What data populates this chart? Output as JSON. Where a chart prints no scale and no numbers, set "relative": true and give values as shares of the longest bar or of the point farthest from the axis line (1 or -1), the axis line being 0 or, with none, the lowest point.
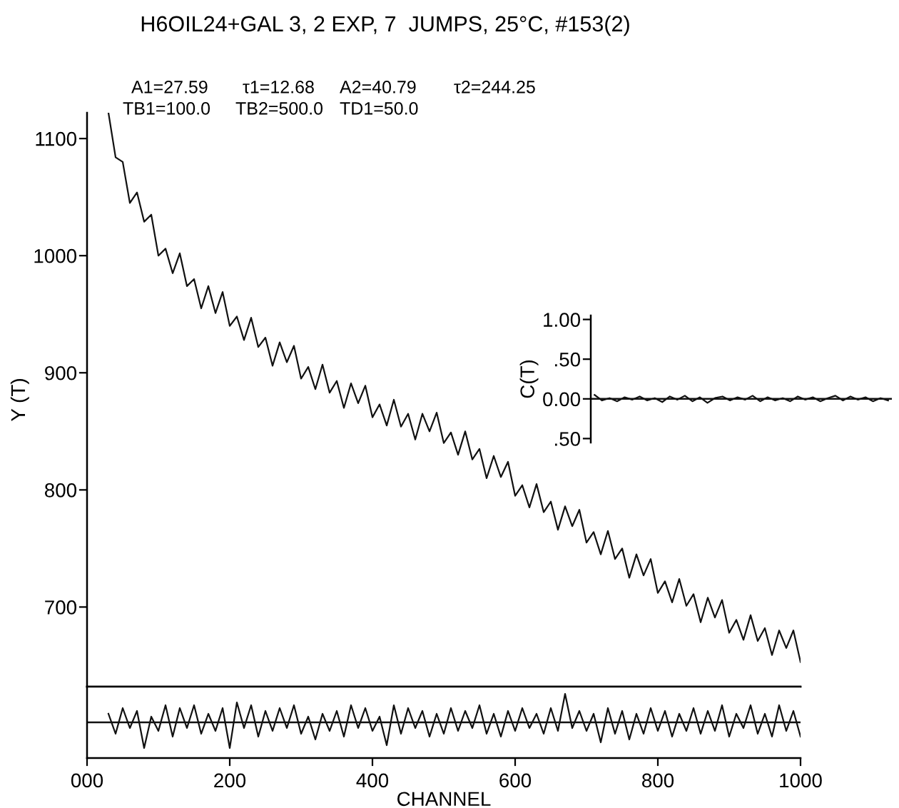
{
  "chart_data": [
    {
      "type": "line",
      "title": "H6OIL24+GAL 3, 2 EXP, 7  JUMPS, 25°C, #153(2)",
      "ylabel": "Y (T)",
      "annotations": [
        "A1=27.59",
        "τ1=12.68",
        "A2=40.79",
        "τ2=244.25",
        "TB1=100.0",
        "TB2=500.0",
        "TD1=50.0"
      ],
      "x": [
        30,
        40,
        50,
        60,
        70,
        80,
        90,
        100,
        110,
        120,
        130,
        140,
        150,
        160,
        170,
        180,
        190,
        200,
        210,
        220,
        230,
        240,
        250,
        260,
        270,
        280,
        290,
        300,
        310,
        320,
        330,
        340,
        350,
        360,
        370,
        380,
        390,
        400,
        410,
        420,
        430,
        440,
        450,
        460,
        470,
        480,
        490,
        500,
        510,
        520,
        530,
        540,
        550,
        560,
        570,
        580,
        590,
        600,
        610,
        620,
        630,
        640,
        650,
        660,
        670,
        680,
        690,
        700,
        710,
        720,
        730,
        740,
        750,
        760,
        770,
        780,
        790,
        800,
        810,
        820,
        830,
        840,
        850,
        860,
        870,
        880,
        890,
        900,
        910,
        920,
        930,
        940,
        950,
        960,
        970,
        980,
        990,
        1000
      ],
      "series": [
        {
          "color": "#111111",
          "values": [
            1122,
            1084,
            1080,
            1045,
            1054,
            1029,
            1035,
            1000,
            1006,
            985,
            1002,
            974,
            980,
            955,
            974,
            951,
            969,
            940,
            948,
            928,
            947,
            922,
            930,
            906,
            926,
            909,
            923,
            895,
            905,
            886,
            907,
            883,
            893,
            870,
            891,
            874,
            889,
            862,
            873,
            855,
            877,
            854,
            865,
            843,
            865,
            850,
            866,
            840,
            849,
            830,
            850,
            826,
            835,
            810,
            829,
            811,
            824,
            795,
            804,
            785,
            805,
            781,
            790,
            766,
            786,
            769,
            783,
            755,
            764,
            745,
            765,
            741,
            750,
            725,
            745,
            727,
            741,
            712,
            722,
            704,
            724,
            701,
            711,
            687,
            708,
            691,
            706,
            678,
            689,
            672,
            693,
            671,
            682,
            659,
            680,
            665,
            680,
            653
          ]
        }
      ],
      "xlim": [
        0,
        1000
      ],
      "ylim": [
        632,
        1122
      ],
      "yticks": [
        700,
        800,
        900,
        1000,
        1100
      ],
      "tick_labels": "y",
      "grid": false,
      "legend": false,
      "marker": "none",
      "line_style": "solid"
    },
    {
      "type": "line",
      "xlabel": "CHANNEL",
      "relative": true,
      "x": [
        30,
        40,
        50,
        60,
        70,
        80,
        90,
        100,
        110,
        120,
        130,
        140,
        150,
        160,
        170,
        180,
        190,
        200,
        210,
        220,
        230,
        240,
        250,
        260,
        270,
        280,
        290,
        300,
        310,
        320,
        330,
        340,
        350,
        360,
        370,
        380,
        390,
        400,
        410,
        420,
        430,
        440,
        450,
        460,
        470,
        480,
        490,
        500,
        510,
        520,
        530,
        540,
        550,
        560,
        570,
        580,
        590,
        600,
        610,
        620,
        630,
        640,
        650,
        660,
        670,
        680,
        690,
        700,
        710,
        720,
        730,
        740,
        750,
        760,
        770,
        780,
        790,
        800,
        810,
        820,
        830,
        840,
        850,
        860,
        870,
        880,
        890,
        900,
        910,
        920,
        930,
        940,
        950,
        960,
        970,
        980,
        990,
        1000
      ],
      "series": [
        {
          "color": "#111111",
          "values": [
            0.3,
            -0.4,
            0.5,
            -0.2,
            0.4,
            -0.9,
            0.2,
            -0.3,
            0.6,
            -0.5,
            0.5,
            -0.2,
            0.6,
            -0.4,
            0.3,
            -0.3,
            0.5,
            -0.9,
            0.7,
            -0.2,
            0.6,
            -0.5,
            0.4,
            -0.3,
            0.5,
            -0.2,
            0.6,
            -0.4,
            0.2,
            -0.6,
            0.3,
            -0.3,
            0.4,
            -0.5,
            0.6,
            -0.2,
            0.5,
            -0.3,
            0.2,
            -0.8,
            0.6,
            -0.4,
            0.5,
            -0.2,
            0.4,
            -0.5,
            0.3,
            -0.4,
            0.5,
            -0.3,
            0.4,
            -0.2,
            0.6,
            -0.4,
            0.3,
            -0.5,
            0.4,
            -0.3,
            0.5,
            -0.2,
            0.3,
            -0.4,
            0.5,
            -0.3,
            1.0,
            -0.2,
            0.4,
            -0.3,
            0.3,
            -0.7,
            0.5,
            -0.4,
            0.4,
            -0.6,
            0.3,
            -0.4,
            0.5,
            -0.3,
            0.4,
            -0.5,
            0.3,
            -0.3,
            0.5,
            -0.4,
            0.4,
            -0.3,
            0.6,
            -0.5,
            0.3,
            -0.2,
            0.6,
            -0.4,
            0.3,
            -0.5,
            0.6,
            -0.3,
            0.4,
            -0.5
          ]
        }
      ],
      "ref_lines": [
        {
          "axis": "y",
          "value": 0,
          "color": "#111111"
        }
      ],
      "xlim": [
        0,
        1000
      ],
      "xticks": [
        {
          "value": 0,
          "label": "000"
        },
        200,
        400,
        600,
        800,
        1000
      ],
      "tick_labels": "x",
      "grid": false,
      "legend": false,
      "marker": "none",
      "line_style": "solid"
    },
    {
      "type": "line",
      "ylabel": "C(T)",
      "categories": [
        null,
        null,
        null,
        null,
        null,
        null,
        null,
        null,
        null,
        null,
        null,
        null,
        null,
        null,
        null,
        null,
        null,
        null,
        null,
        null,
        null,
        null,
        null,
        null,
        null,
        null,
        null,
        null,
        null,
        null,
        null,
        null,
        null,
        null,
        null,
        null,
        null,
        null,
        null,
        null
      ],
      "series": [
        {
          "color": "#111111",
          "values": [
            0.05,
            -0.02,
            0.01,
            -0.03,
            0.02,
            -0.01,
            0.03,
            -0.02,
            0.01,
            -0.04,
            0.03,
            -0.01,
            0.04,
            -0.03,
            0.02,
            -0.05,
            0.01,
            0.03,
            -0.02,
            0.02,
            -0.01,
            0.04,
            -0.03,
            0.02,
            -0.02,
            0.01,
            -0.03,
            0.03,
            -0.01,
            0.02,
            -0.03,
            0.01,
            0.04,
            -0.02,
            0.03,
            -0.01,
            0.02,
            -0.03,
            0.01,
            -0.02
          ]
        }
      ],
      "ref_lines": [
        {
          "axis": "y",
          "value": 0,
          "color": "#111111"
        }
      ],
      "ylim": [
        -0.55,
        1.05
      ],
      "yticks": [
        {
          "value": 1.0,
          "label": "1.00"
        },
        {
          "value": 0.5,
          "label": ".50"
        },
        {
          "value": 0,
          "label": "0.00"
        },
        {
          "value": -0.5,
          "label": ".50"
        }
      ],
      "tick_labels": "y",
      "grid": false,
      "legend": false,
      "marker": "none",
      "line_style": "solid"
    }
  ]
}
